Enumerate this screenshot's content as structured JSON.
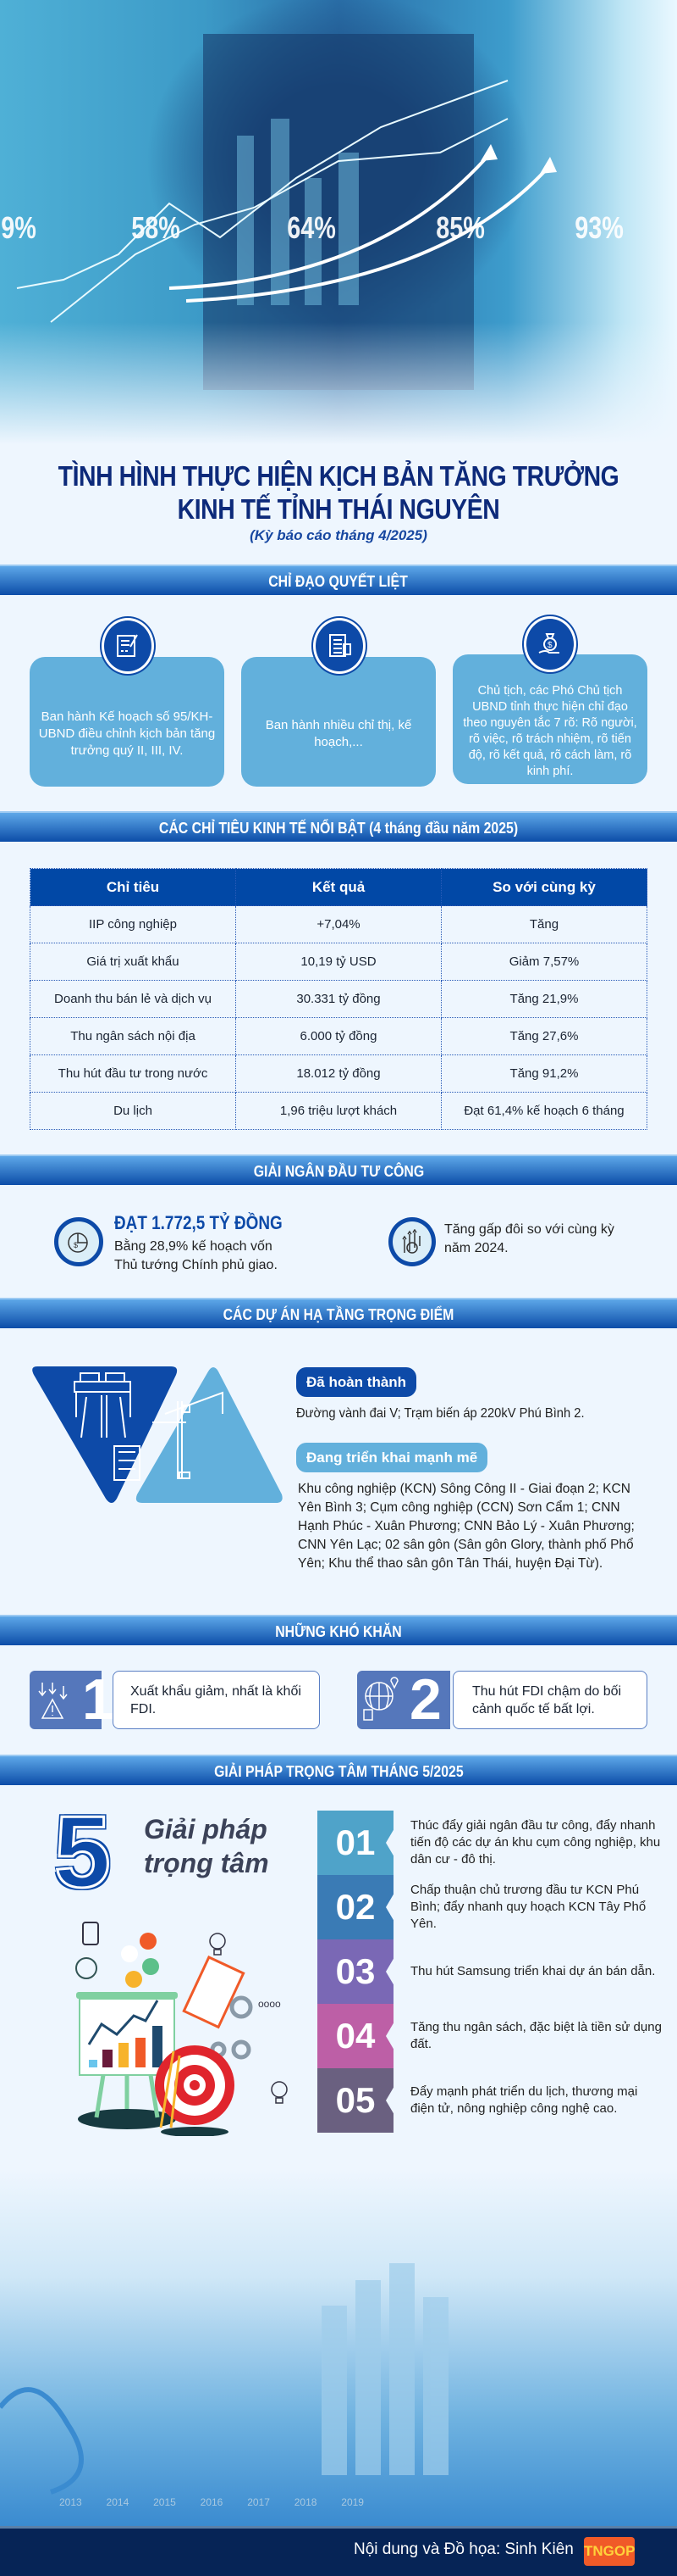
{
  "hero": {
    "percentages": [
      "9%",
      "58%",
      "64%",
      "85%",
      "93%"
    ]
  },
  "title": {
    "line1": "TÌNH HÌNH THỰC HIỆN KỊCH BẢN TĂNG TRƯỞNG",
    "line2": "KINH TẾ TỈNH THÁI NGUYÊN",
    "subtitle": "(Kỳ báo cáo tháng 4/2025)"
  },
  "direction": {
    "heading": "CHỈ ĐẠO QUYẾT LIỆT",
    "cards": [
      {
        "icon": "document-sign-icon",
        "text": "Ban hành Kế hoạch số 95/KH-UBND điều chỉnh kịch bản tăng trưởng quý II, III, IV."
      },
      {
        "icon": "documents-icon",
        "text": "Ban hành nhiều chỉ thị, kế hoạch,..."
      },
      {
        "icon": "money-bag-hand-icon",
        "text": "Chủ tịch, các Phó Chủ tịch UBND tỉnh thực hiện chỉ đạo theo nguyên tắc 7 rõ: Rõ người, rõ việc, rõ trách nhiệm, rõ tiến độ, rõ kết quả, rõ cách làm, rõ kinh phí."
      }
    ]
  },
  "indicators": {
    "heading": "CÁC CHỈ TIÊU KINH TẾ NỔI BẬT (4 tháng đầu năm 2025)",
    "columns": [
      "Chỉ tiêu",
      "Kết quả",
      "So với cùng kỳ"
    ],
    "rows": [
      [
        "IIP công nghiệp",
        "+7,04%",
        "Tăng"
      ],
      [
        "Giá trị xuất khẩu",
        "10,19 tỷ USD",
        "Giảm 7,57%"
      ],
      [
        "Doanh thu bán lẻ và dịch vụ",
        "30.331 tỷ đồng",
        "Tăng 21,9%"
      ],
      [
        "Thu ngân sách nội địa",
        "6.000 tỷ đồng",
        "Tăng 27,6%"
      ],
      [
        "Thu hút đầu tư trong nước",
        "18.012 tỷ đồng",
        "Tăng 91,2%"
      ],
      [
        "Du lịch",
        "1,96 triệu lượt khách",
        "Đạt 61,4% kế hoạch 6 tháng"
      ]
    ]
  },
  "disbursement": {
    "heading": "GIẢI NGÂN ĐẦU TƯ CÔNG",
    "amount": "ĐẠT 1.772,5 TỶ ĐỒNG",
    "amount_note": "Bằng 28,9% kế hoạch vốn Thủ tướng Chính phủ giao.",
    "growth": "Tăng gấp đôi so với cùng kỳ năm 2024."
  },
  "infrastructure": {
    "heading": "CÁC DỰ ÁN HẠ TẦNG TRỌNG ĐIỂM",
    "done_label": "Đã hoàn thành",
    "done_text": "Đường vành đai V; Trạm biến áp 220kV Phú Bình 2.",
    "ongoing_label": "Đang triển khai mạnh mẽ",
    "ongoing_text": "Khu công nghiệp (KCN) Sông Công II - Giai đoạn 2; KCN Yên Bình 3; Cụm công nghiệp (CCN) Sơn Cẩm 1; CNN Hạnh Phúc - Xuân Phương; CNN Bảo Lý - Xuân Phương; CNN Yên Lạc; 02 sân gôn (Sân gôn Glory, thành phố Phổ Yên; Khu thể thao sân gôn Tân Thái, huyện Đại Từ)."
  },
  "difficulties": {
    "heading": "NHỮNG KHÓ KHĂN",
    "items": [
      {
        "number": "1",
        "icon": "warning-down-arrows-icon",
        "text": "Xuất khẩu giảm, nhất là khối FDI."
      },
      {
        "number": "2",
        "icon": "globe-plane-icon",
        "text": "Thu hút FDI chậm do bối cảnh quốc tế bất lợi."
      }
    ]
  },
  "solutions": {
    "heading": "GIẢI PHÁP TRỌNG TÂM THÁNG 5/2025",
    "big_number": "5",
    "title_line1": "Giải pháp",
    "title_line2": "trọng tâm",
    "items": [
      {
        "number": "01",
        "color": "#4fa3c9",
        "text": "Thúc đẩy giải ngân đầu tư công, đẩy nhanh tiến độ các dự án khu cụm công nghiệp, khu dân cư - đô thị."
      },
      {
        "number": "02",
        "color": "#3a7bb5",
        "text": "Chấp thuận chủ trương đầu tư KCN Phú Bình; đẩy nhanh quy hoạch KCN Tây Phổ Yên."
      },
      {
        "number": "03",
        "color": "#7a68b5",
        "text": "Thu hút Samsung triển khai dự án bán dẫn."
      },
      {
        "number": "04",
        "color": "#bd5fa6",
        "text": "Tăng thu ngân sách, đặc biệt là tiền sử dụng đất."
      },
      {
        "number": "05",
        "color": "#6a6080",
        "text": "Đẩy mạnh phát triển du lịch, thương mại điện tử, nông nghiệp công nghệ cao."
      }
    ]
  },
  "bottom_image": {
    "years": [
      "2013",
      "2014",
      "2015",
      "2016",
      "2017",
      "2018",
      "2019"
    ]
  },
  "footer": {
    "credit": "Nội dung và Đồ họa: Sinh Kiên",
    "logo": "TNGOP"
  }
}
